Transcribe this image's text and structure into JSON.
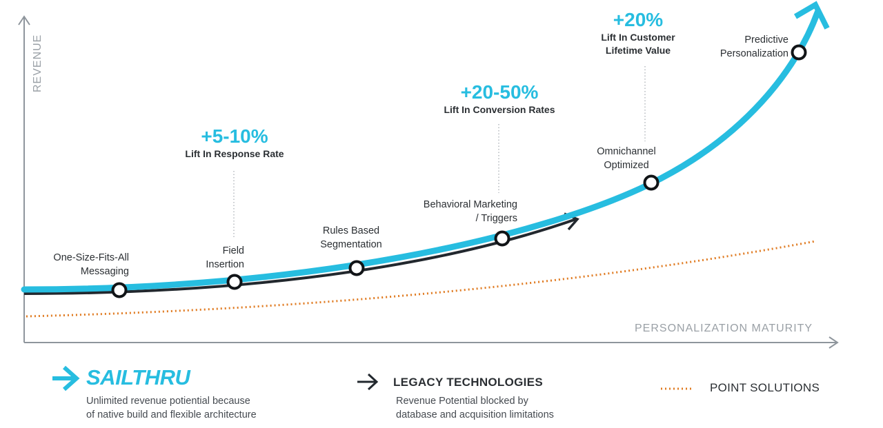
{
  "axes": {
    "y_label": "REVENUE",
    "x_label": "PERSONALIZATION MATURITY"
  },
  "stages": [
    {
      "label_line1": "One-Size-Fits-All",
      "label_line2": "Messaging"
    },
    {
      "label_line1": "Field",
      "label_line2": "Insertion"
    },
    {
      "label_line1": "Rules Based",
      "label_line2": "Segmentation"
    },
    {
      "label_line1": "Behavioral Marketing",
      "label_line2": "/ Triggers"
    },
    {
      "label_line1": "Omnichannel",
      "label_line2": "Optimized"
    },
    {
      "label_line1": "Predictive",
      "label_line2": "Personalization"
    }
  ],
  "lifts": [
    {
      "value": "+5-10%",
      "desc_line1": "Lift In Response Rate",
      "desc_line2": ""
    },
    {
      "value": "+20-50%",
      "desc_line1": "Lift In Conversion Rates",
      "desc_line2": ""
    },
    {
      "value": "+20%",
      "desc_line1": "Lift In Customer",
      "desc_line2": "Lifetime Value"
    }
  ],
  "legend": {
    "sailthru": {
      "name": "SAILTHRU",
      "desc_line1": "Unlimited revenue potiential because",
      "desc_line2": "of native build and flexible architecture"
    },
    "legacy": {
      "title": "LEGACY TECHNOLOGIES",
      "desc_line1": "Revenue Potential blocked by",
      "desc_line2": "database and acquisition limitations"
    },
    "point": {
      "title": "POINT SOLUTIONS"
    }
  },
  "colors": {
    "sailthru": "#27bde0",
    "legacy": "#22282e",
    "point": "#e07b22",
    "axis": "#8e959c"
  }
}
